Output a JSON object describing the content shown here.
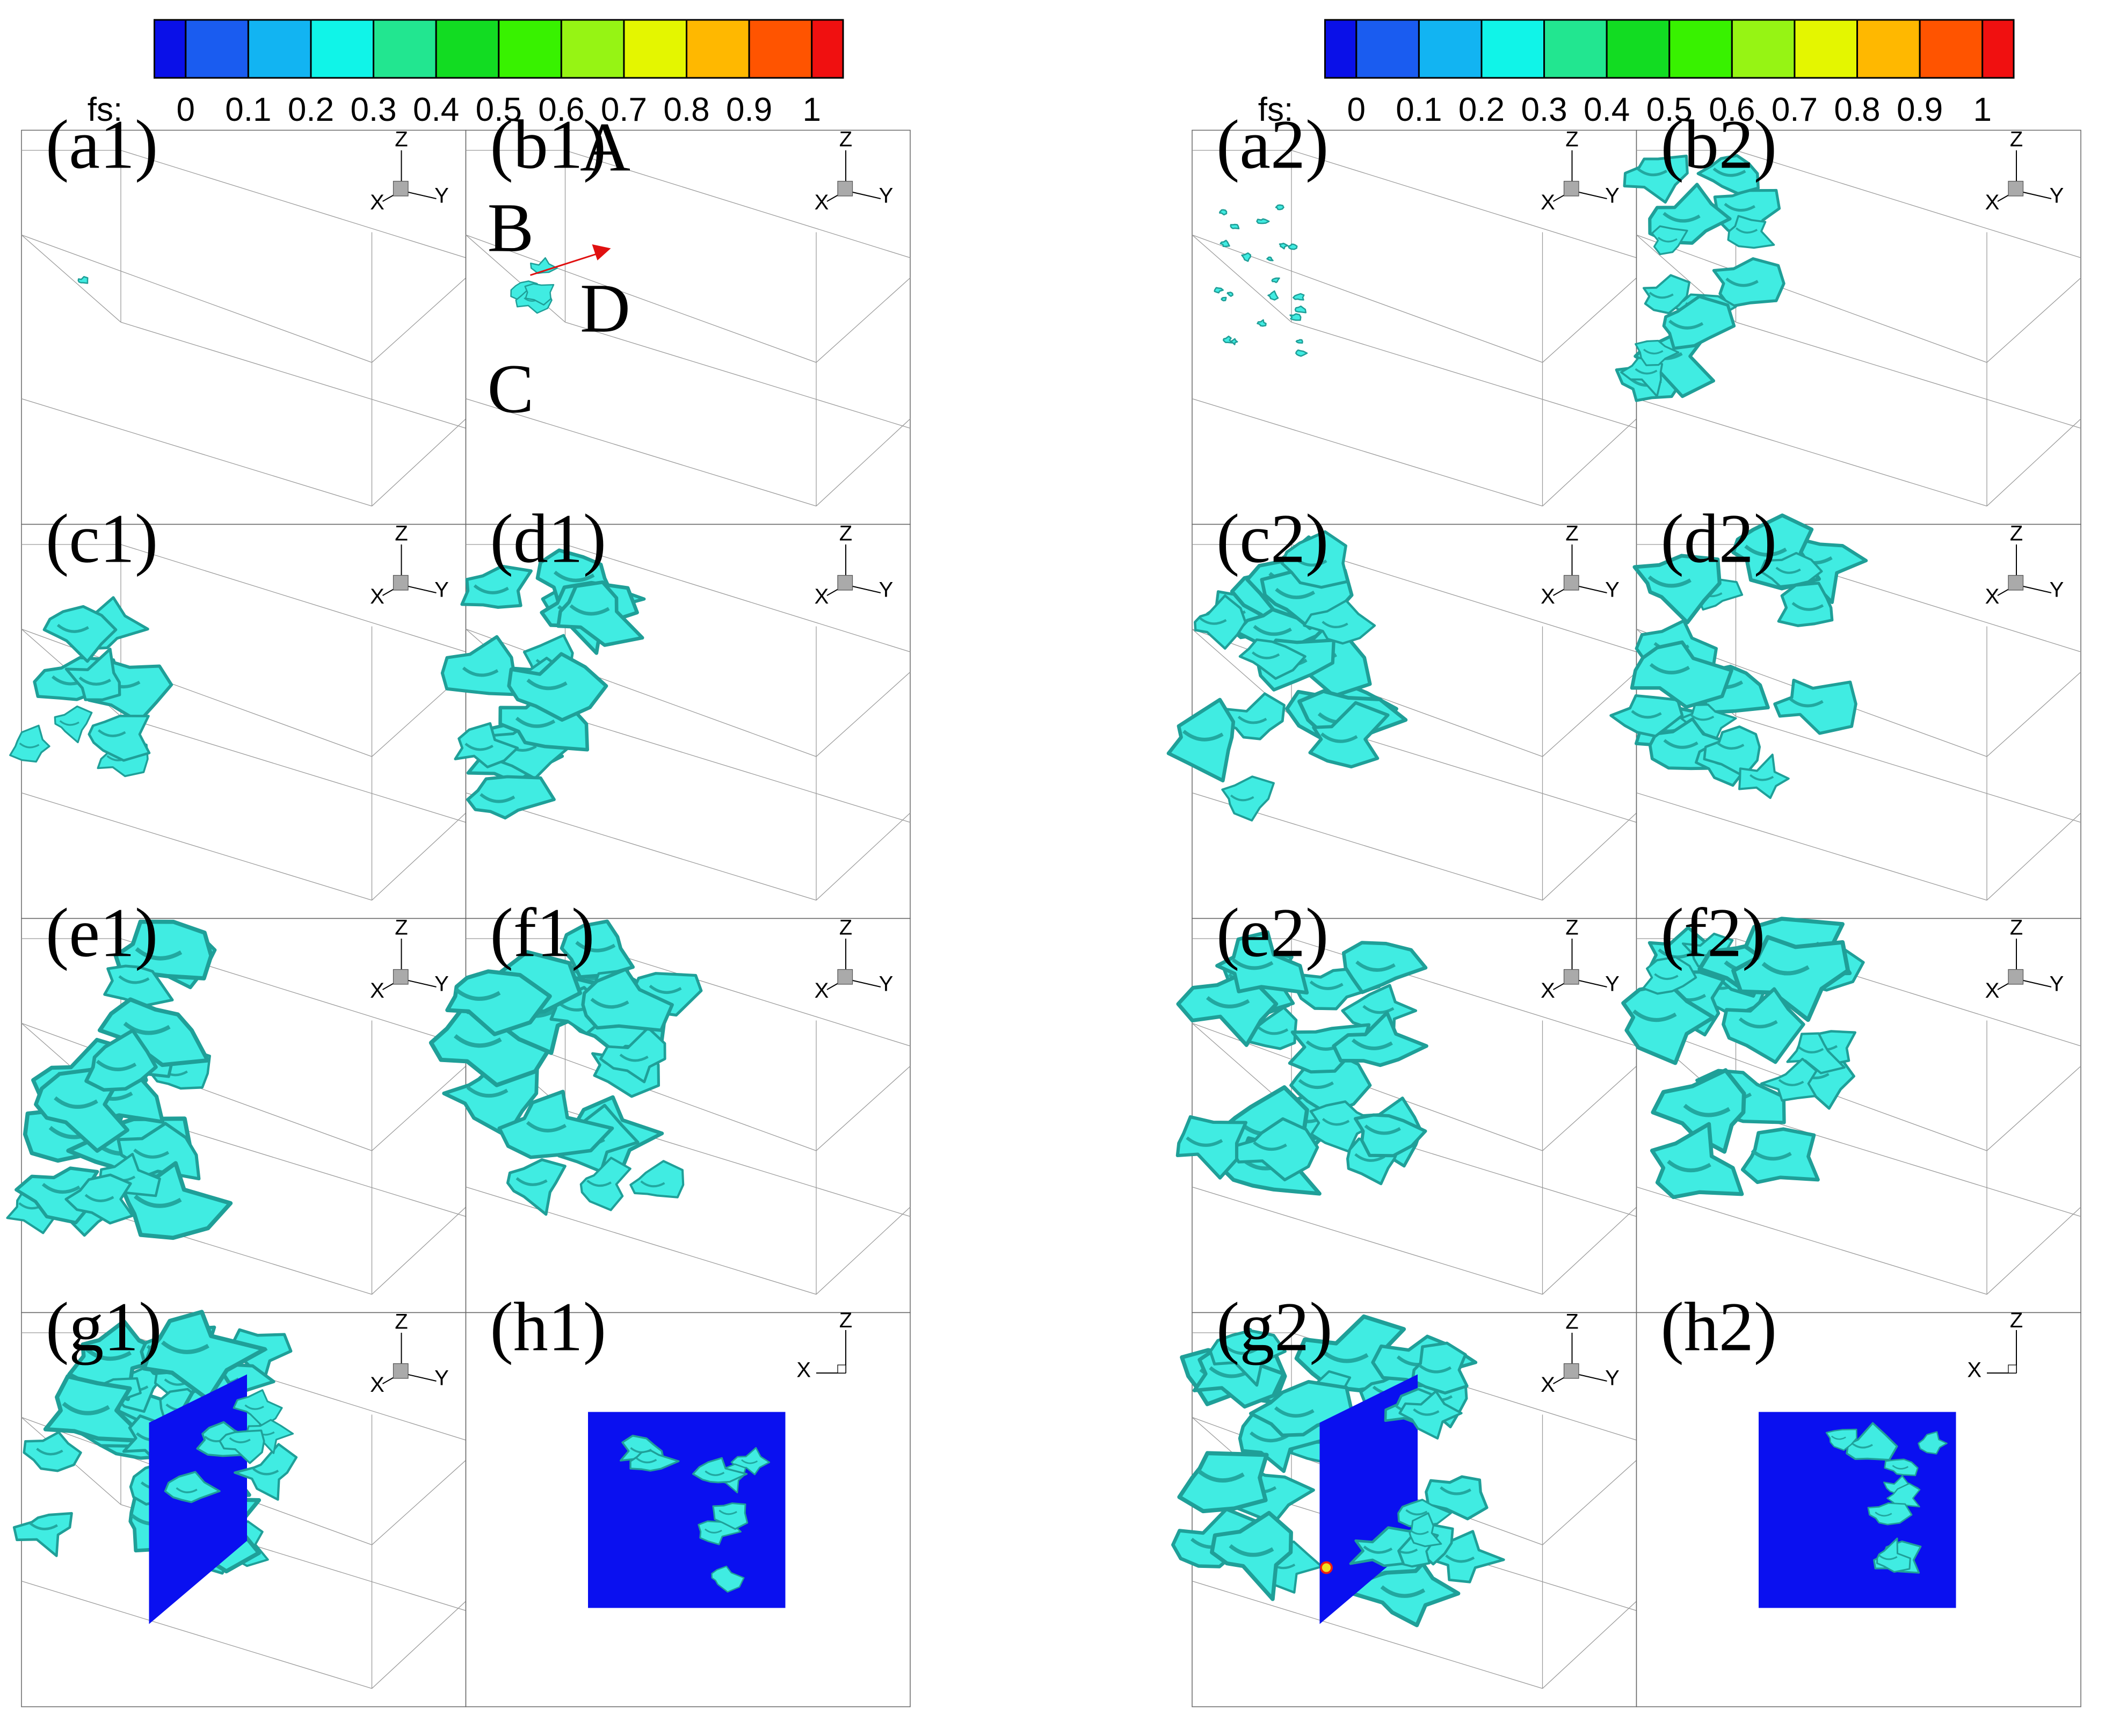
{
  "colorbars": [
    {
      "label": "fs:",
      "ticks": [
        "0",
        "0.1",
        "0.2",
        "0.3",
        "0.4",
        "0.5",
        "0.6",
        "0.7",
        "0.8",
        "0.9",
        "1"
      ],
      "colors": [
        "#0a10e8",
        "#1a5cf0",
        "#12b4f2",
        "#10f4e8",
        "#22e690",
        "#12dc22",
        "#38f200",
        "#96f414",
        "#e4f600",
        "#ffb800",
        "#ff5400",
        "#f01010"
      ]
    },
    {
      "label": "fs:",
      "ticks": [
        "0",
        "0.1",
        "0.2",
        "0.3",
        "0.4",
        "0.5",
        "0.6",
        "0.7",
        "0.8",
        "0.9",
        "1"
      ],
      "colors": [
        "#0a10e8",
        "#1a5cf0",
        "#12b4f2",
        "#10f4e8",
        "#22e690",
        "#12dc22",
        "#38f200",
        "#96f414",
        "#e4f600",
        "#ffb800",
        "#ff5400",
        "#f01010"
      ]
    }
  ],
  "panels": [
    {
      "label": "(a1)"
    },
    {
      "label": "(b1)"
    },
    {
      "label": "(c1)"
    },
    {
      "label": "(d1)"
    },
    {
      "label": "(e1)"
    },
    {
      "label": "(f1)"
    },
    {
      "label": "(g1)"
    },
    {
      "label": "(h1)"
    },
    {
      "label": "(a2)"
    },
    {
      "label": "(b2)"
    },
    {
      "label": "(c2)"
    },
    {
      "label": "(d2)"
    },
    {
      "label": "(e2)"
    },
    {
      "label": "(f2)"
    },
    {
      "label": "(g2)"
    },
    {
      "label": "(h2)"
    }
  ],
  "annotations": [
    "A",
    "B",
    "C",
    "D"
  ],
  "axis_labels": {
    "x": "X",
    "y": "Y",
    "z": "Z"
  }
}
